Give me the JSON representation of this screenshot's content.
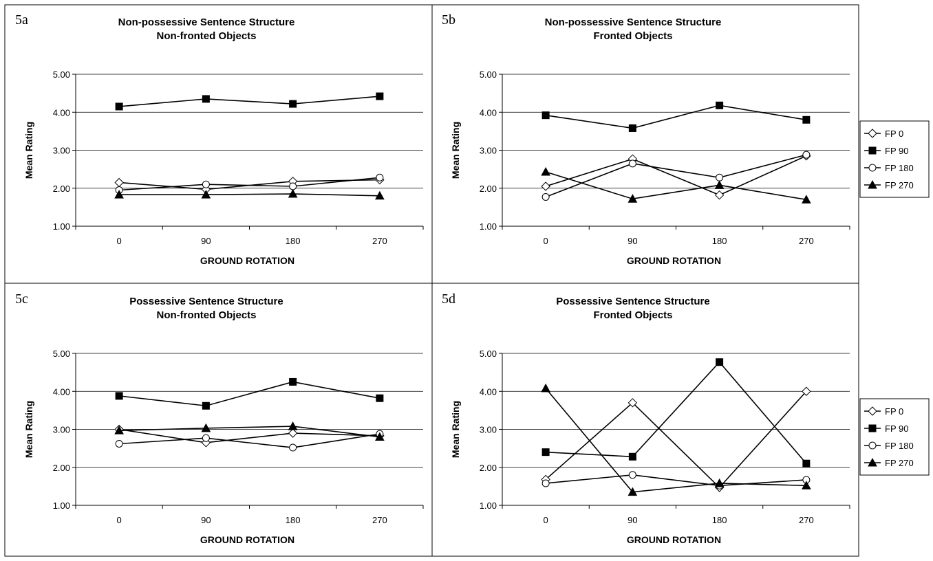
{
  "legend": [
    "FP 0",
    "FP 90",
    "FP 180",
    "FP 270"
  ],
  "chart_data": [
    {
      "type": "line",
      "panel_label": "5a",
      "title": [
        "Non-possessive Sentence Structure",
        "Non-fronted Objects"
      ],
      "xlabel": "GROUND ROTATION",
      "ylabel": "Mean Rating",
      "categories": [
        "0",
        "90",
        "180",
        "270"
      ],
      "yticks": [
        "1.00",
        "2.00",
        "3.00",
        "4.00",
        "5.00"
      ],
      "ylim": [
        1,
        5
      ],
      "grid": true,
      "series": [
        {
          "name": "FP 0",
          "values": [
            2.15,
            1.97,
            2.18,
            2.22
          ]
        },
        {
          "name": "FP 90",
          "values": [
            4.15,
            4.35,
            4.22,
            4.42
          ]
        },
        {
          "name": "FP 180",
          "values": [
            1.95,
            2.1,
            2.05,
            2.28
          ]
        },
        {
          "name": "FP 270",
          "values": [
            1.83,
            1.83,
            1.85,
            1.8
          ]
        }
      ]
    },
    {
      "type": "line",
      "panel_label": "5b",
      "title": [
        "Non-possessive Sentence Structure",
        "Fronted Objects"
      ],
      "xlabel": "GROUND ROTATION",
      "ylabel": "Mean Rating",
      "categories": [
        "0",
        "90",
        "180",
        "270"
      ],
      "yticks": [
        "1.00",
        "2.00",
        "3.00",
        "4.00",
        "5.00"
      ],
      "ylim": [
        1,
        5
      ],
      "grid": true,
      "legend_position": "right",
      "series": [
        {
          "name": "FP 0",
          "values": [
            2.05,
            2.77,
            1.82,
            2.85
          ]
        },
        {
          "name": "FP 90",
          "values": [
            3.92,
            3.58,
            4.18,
            3.8
          ]
        },
        {
          "name": "FP 180",
          "values": [
            1.77,
            2.65,
            2.28,
            2.88
          ]
        },
        {
          "name": "FP 270",
          "values": [
            2.43,
            1.72,
            2.08,
            1.7
          ]
        }
      ]
    },
    {
      "type": "line",
      "panel_label": "5c",
      "title": [
        "Possessive Sentence Structure",
        "Non-fronted Objects"
      ],
      "xlabel": "GROUND ROTATION",
      "ylabel": "Mean Rating",
      "categories": [
        "0",
        "90",
        "180",
        "270"
      ],
      "yticks": [
        "1.00",
        "2.00",
        "3.00",
        "4.00",
        "5.00"
      ],
      "ylim": [
        1,
        5
      ],
      "grid": true,
      "series": [
        {
          "name": "FP 0",
          "values": [
            3.0,
            2.65,
            2.9,
            2.83
          ]
        },
        {
          "name": "FP 90",
          "values": [
            3.88,
            3.62,
            4.25,
            3.82
          ]
        },
        {
          "name": "FP 180",
          "values": [
            2.62,
            2.77,
            2.52,
            2.88
          ]
        },
        {
          "name": "FP 270",
          "values": [
            2.97,
            3.03,
            3.08,
            2.8
          ]
        }
      ]
    },
    {
      "type": "line",
      "panel_label": "5d",
      "title": [
        "Possessive Sentence Structure",
        "Fronted Objects"
      ],
      "xlabel": "GROUND ROTATION",
      "ylabel": "Mean Rating",
      "categories": [
        "0",
        "90",
        "180",
        "270"
      ],
      "yticks": [
        "1.00",
        "2.00",
        "3.00",
        "4.00",
        "5.00"
      ],
      "ylim": [
        1,
        5
      ],
      "grid": true,
      "legend_position": "right",
      "series": [
        {
          "name": "FP 0",
          "values": [
            1.68,
            3.7,
            1.47,
            4.0
          ]
        },
        {
          "name": "FP 90",
          "values": [
            2.4,
            2.28,
            4.77,
            2.1
          ]
        },
        {
          "name": "FP 180",
          "values": [
            1.58,
            1.8,
            1.52,
            1.67
          ]
        },
        {
          "name": "FP 270",
          "values": [
            4.08,
            1.35,
            1.58,
            1.52
          ]
        }
      ]
    }
  ]
}
